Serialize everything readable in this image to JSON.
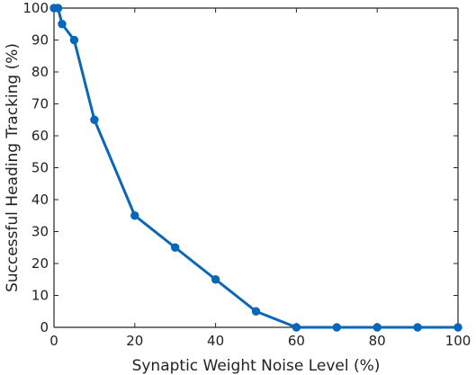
{
  "chart_data": {
    "type": "line",
    "title": "",
    "xlabel": "Synaptic Weight Noise Level (%)",
    "ylabel": "Successful Heading Tracking (%)",
    "xlim": [
      0,
      100
    ],
    "ylim": [
      0,
      100
    ],
    "x_ticks": [
      0,
      20,
      40,
      60,
      80,
      100
    ],
    "y_ticks": [
      0,
      10,
      20,
      30,
      40,
      50,
      60,
      70,
      80,
      90,
      100
    ],
    "grid": false,
    "legend": "none",
    "series": [
      {
        "color": "#0a66b7",
        "x": [
          0,
          1,
          2,
          5,
          10,
          20,
          30,
          40,
          50,
          60,
          70,
          80,
          90,
          100
        ],
        "y": [
          100,
          100,
          95,
          90,
          65,
          35,
          25,
          15,
          5,
          0,
          0,
          0,
          0,
          0
        ]
      }
    ]
  }
}
